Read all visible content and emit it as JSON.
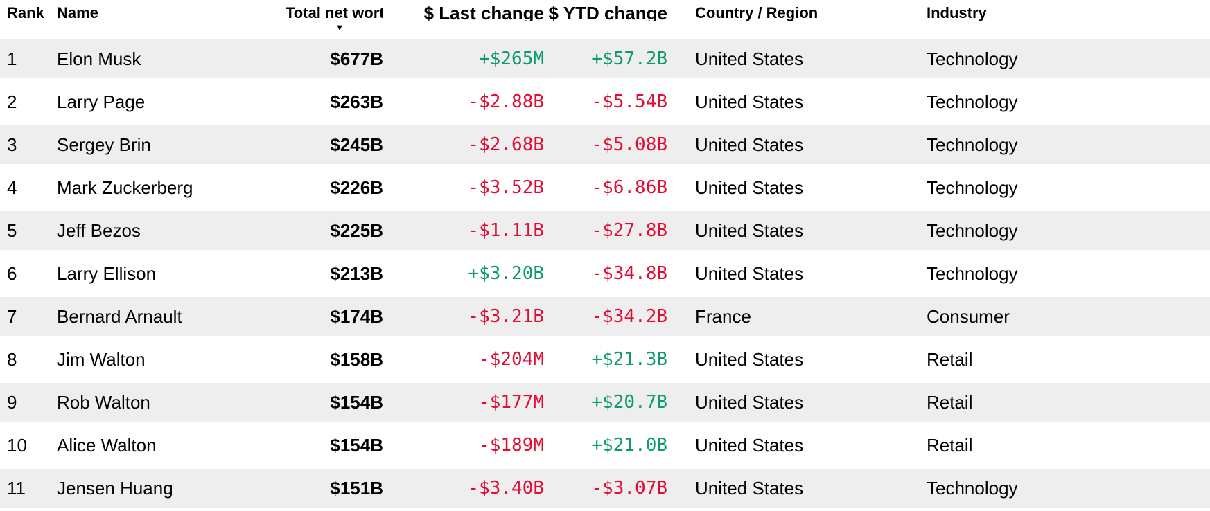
{
  "table": {
    "columns": [
      {
        "key": "rank",
        "label": "Rank"
      },
      {
        "key": "name",
        "label": "Name"
      },
      {
        "key": "net_worth",
        "label": "Total net worth",
        "sorted": "descending"
      },
      {
        "key": "last_change",
        "label": "$ Last change"
      },
      {
        "key": "ytd_change",
        "label": "$ YTD change"
      },
      {
        "key": "country",
        "label": "Country / Region"
      },
      {
        "key": "industry",
        "label": "Industry"
      }
    ],
    "sort_icon": "▼",
    "rows": [
      {
        "rank": "1",
        "name": "Elon Musk",
        "net_worth": "$677B",
        "last_change": "+$265M",
        "last_change_dir": "up",
        "ytd_change": "+$57.2B",
        "ytd_change_dir": "up",
        "country": "United States",
        "industry": "Technology"
      },
      {
        "rank": "2",
        "name": "Larry Page",
        "net_worth": "$263B",
        "last_change": "-$2.88B",
        "last_change_dir": "down",
        "ytd_change": "-$5.54B",
        "ytd_change_dir": "down",
        "country": "United States",
        "industry": "Technology"
      },
      {
        "rank": "3",
        "name": "Sergey Brin",
        "net_worth": "$245B",
        "last_change": "-$2.68B",
        "last_change_dir": "down",
        "ytd_change": "-$5.08B",
        "ytd_change_dir": "down",
        "country": "United States",
        "industry": "Technology"
      },
      {
        "rank": "4",
        "name": "Mark Zuckerberg",
        "net_worth": "$226B",
        "last_change": "-$3.52B",
        "last_change_dir": "down",
        "ytd_change": "-$6.86B",
        "ytd_change_dir": "down",
        "country": "United States",
        "industry": "Technology"
      },
      {
        "rank": "5",
        "name": "Jeff Bezos",
        "net_worth": "$225B",
        "last_change": "-$1.11B",
        "last_change_dir": "down",
        "ytd_change": "-$27.8B",
        "ytd_change_dir": "down",
        "country": "United States",
        "industry": "Technology"
      },
      {
        "rank": "6",
        "name": "Larry Ellison",
        "net_worth": "$213B",
        "last_change": "+$3.20B",
        "last_change_dir": "up",
        "ytd_change": "-$34.8B",
        "ytd_change_dir": "down",
        "country": "United States",
        "industry": "Technology"
      },
      {
        "rank": "7",
        "name": "Bernard Arnault",
        "net_worth": "$174B",
        "last_change": "-$3.21B",
        "last_change_dir": "down",
        "ytd_change": "-$34.2B",
        "ytd_change_dir": "down",
        "country": "France",
        "industry": "Consumer"
      },
      {
        "rank": "8",
        "name": "Jim Walton",
        "net_worth": "$158B",
        "last_change": "-$204M",
        "last_change_dir": "down",
        "ytd_change": "+$21.3B",
        "ytd_change_dir": "up",
        "country": "United States",
        "industry": "Retail"
      },
      {
        "rank": "9",
        "name": "Rob Walton",
        "net_worth": "$154B",
        "last_change": "-$177M",
        "last_change_dir": "down",
        "ytd_change": "+$20.7B",
        "ytd_change_dir": "up",
        "country": "United States",
        "industry": "Retail"
      },
      {
        "rank": "10",
        "name": "Alice Walton",
        "net_worth": "$154B",
        "last_change": "-$189M",
        "last_change_dir": "down",
        "ytd_change": "+$21.0B",
        "ytd_change_dir": "up",
        "country": "United States",
        "industry": "Retail"
      },
      {
        "rank": "11",
        "name": "Jensen Huang",
        "net_worth": "$151B",
        "last_change": "-$3.40B",
        "last_change_dir": "down",
        "ytd_change": "-$3.07B",
        "ytd_change_dir": "down",
        "country": "United States",
        "industry": "Technology"
      }
    ]
  },
  "colors": {
    "positive": "#0d9a6d",
    "negative": "#e40b32",
    "row_alt": "#eeeeee",
    "text": "#000000"
  }
}
